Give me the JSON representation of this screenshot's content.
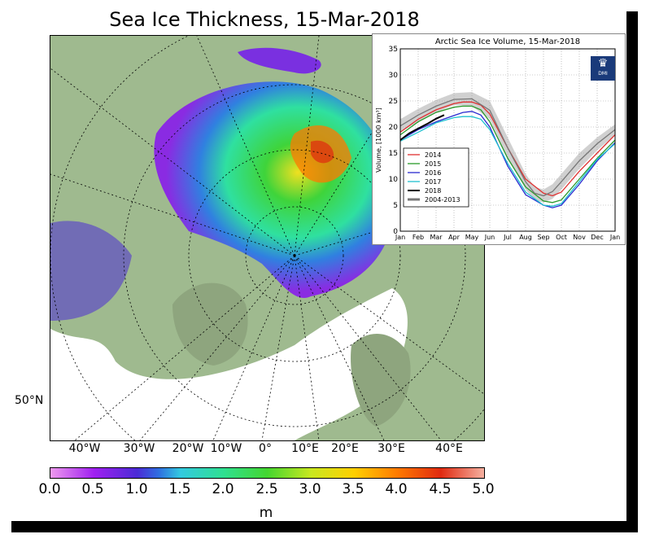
{
  "title": "Sea Ice Thickness, 15-Mar-2018",
  "map": {
    "lat_label": "50°N",
    "lon_labels": [
      "40°W",
      "30°W",
      "20°W",
      "10°W",
      "0°",
      "10°E",
      "20°E",
      "30°E",
      "40°E"
    ]
  },
  "colorbar": {
    "ticks": [
      "0.0",
      "0.5",
      "1.0",
      "1.5",
      "2.0",
      "2.5",
      "3.0",
      "3.5",
      "4.0",
      "4.5",
      "5.0"
    ],
    "unit": "m",
    "range": [
      0,
      5
    ],
    "colors": [
      "#ee99ee",
      "#a020f0",
      "#4b2bd6",
      "#2f6fe0",
      "#33c9e0",
      "#2fe090",
      "#44d630",
      "#c8e820",
      "#ffd000",
      "#ff7a00",
      "#e02a10",
      "#f5b0a0"
    ]
  },
  "chart_data": {
    "type": "line",
    "title": "Arctic Sea Ice Volume, 15-Mar-2018",
    "ylabel": "Volume, [1000 km³]",
    "xlabel": "",
    "ylim": [
      0,
      35
    ],
    "yticks": [
      "0",
      "5",
      "10",
      "15",
      "20",
      "25",
      "30",
      "35"
    ],
    "x_tick_labels": [
      "Jan",
      "Feb",
      "Mar",
      "Apr",
      "May",
      "Jun",
      "Jul",
      "Aug",
      "Sep",
      "Oct",
      "Nov",
      "Dec",
      "Jan"
    ],
    "grid": true,
    "legend_position": "bottom-left",
    "logo_text": "DMI",
    "band": {
      "name": "2004-2013",
      "color": "#aaaaaa",
      "x": [
        0,
        1,
        2,
        3,
        4,
        5,
        6,
        7,
        7.5,
        8,
        8.5,
        9,
        10,
        11,
        12
      ],
      "upper": [
        21.5,
        23.5,
        25.2,
        26.5,
        26.7,
        25.0,
        18.0,
        11.0,
        8.5,
        8.0,
        9.0,
        11.0,
        15.0,
        18.0,
        20.5
      ],
      "lower": [
        19.0,
        21.0,
        22.8,
        24.2,
        24.0,
        21.5,
        14.0,
        8.0,
        6.0,
        5.5,
        6.2,
        8.0,
        12.0,
        15.5,
        18.5
      ]
    },
    "series": [
      {
        "name": "2014",
        "color": "#e03030",
        "x": [
          0,
          1,
          2,
          3,
          3.5,
          4,
          4.5,
          5,
          6,
          7,
          8,
          8.5,
          9,
          10,
          11,
          12
        ],
        "values": [
          19.0,
          21.5,
          23.3,
          24.5,
          24.8,
          24.8,
          24.2,
          22.5,
          16.0,
          10.0,
          7.3,
          6.8,
          7.5,
          11.5,
          15.0,
          18.5
        ]
      },
      {
        "name": "2015",
        "color": "#2a9a2a",
        "x": [
          0,
          1,
          2,
          3,
          3.5,
          4,
          4.5,
          5,
          6,
          7,
          8,
          8.5,
          9,
          10,
          11,
          12
        ],
        "values": [
          18.5,
          21.0,
          22.8,
          23.8,
          24.0,
          24.0,
          23.3,
          21.0,
          14.0,
          8.5,
          5.8,
          5.5,
          6.0,
          10.0,
          14.0,
          17.5
        ]
      },
      {
        "name": "2016",
        "color": "#2a2ad0",
        "x": [
          0,
          1,
          2,
          3,
          3.5,
          4,
          4.5,
          5,
          6,
          7,
          8,
          8.5,
          9,
          10,
          11,
          12
        ],
        "values": [
          17.5,
          19.5,
          21.0,
          22.2,
          22.8,
          23.0,
          22.3,
          20.0,
          12.5,
          7.0,
          5.0,
          4.5,
          5.0,
          9.0,
          13.5,
          17.0
        ]
      },
      {
        "name": "2017",
        "color": "#20c0d0",
        "x": [
          0,
          1,
          2,
          3,
          3.5,
          4,
          4.5,
          5,
          6,
          7,
          8,
          8.5,
          9,
          10,
          11,
          12
        ],
        "values": [
          17.3,
          19.0,
          20.8,
          21.8,
          22.0,
          22.0,
          21.5,
          19.5,
          13.0,
          7.5,
          5.0,
          4.8,
          5.3,
          9.5,
          13.8,
          16.8
        ]
      },
      {
        "name": "2018",
        "color": "#000000",
        "x": [
          0,
          0.5,
          1,
          1.5,
          2,
          2.45
        ],
        "values": [
          17.5,
          18.8,
          19.7,
          20.6,
          21.6,
          22.3
        ]
      },
      {
        "name": "2004-2013",
        "color": "#777777",
        "x": [
          0,
          1,
          2,
          3,
          4,
          5,
          6,
          7,
          7.5,
          8,
          8.5,
          9,
          10,
          11,
          12
        ],
        "values": [
          20.2,
          22.3,
          24.0,
          25.3,
          25.4,
          23.2,
          16.0,
          9.5,
          7.3,
          6.8,
          7.6,
          9.5,
          13.5,
          16.8,
          19.5
        ]
      }
    ]
  }
}
